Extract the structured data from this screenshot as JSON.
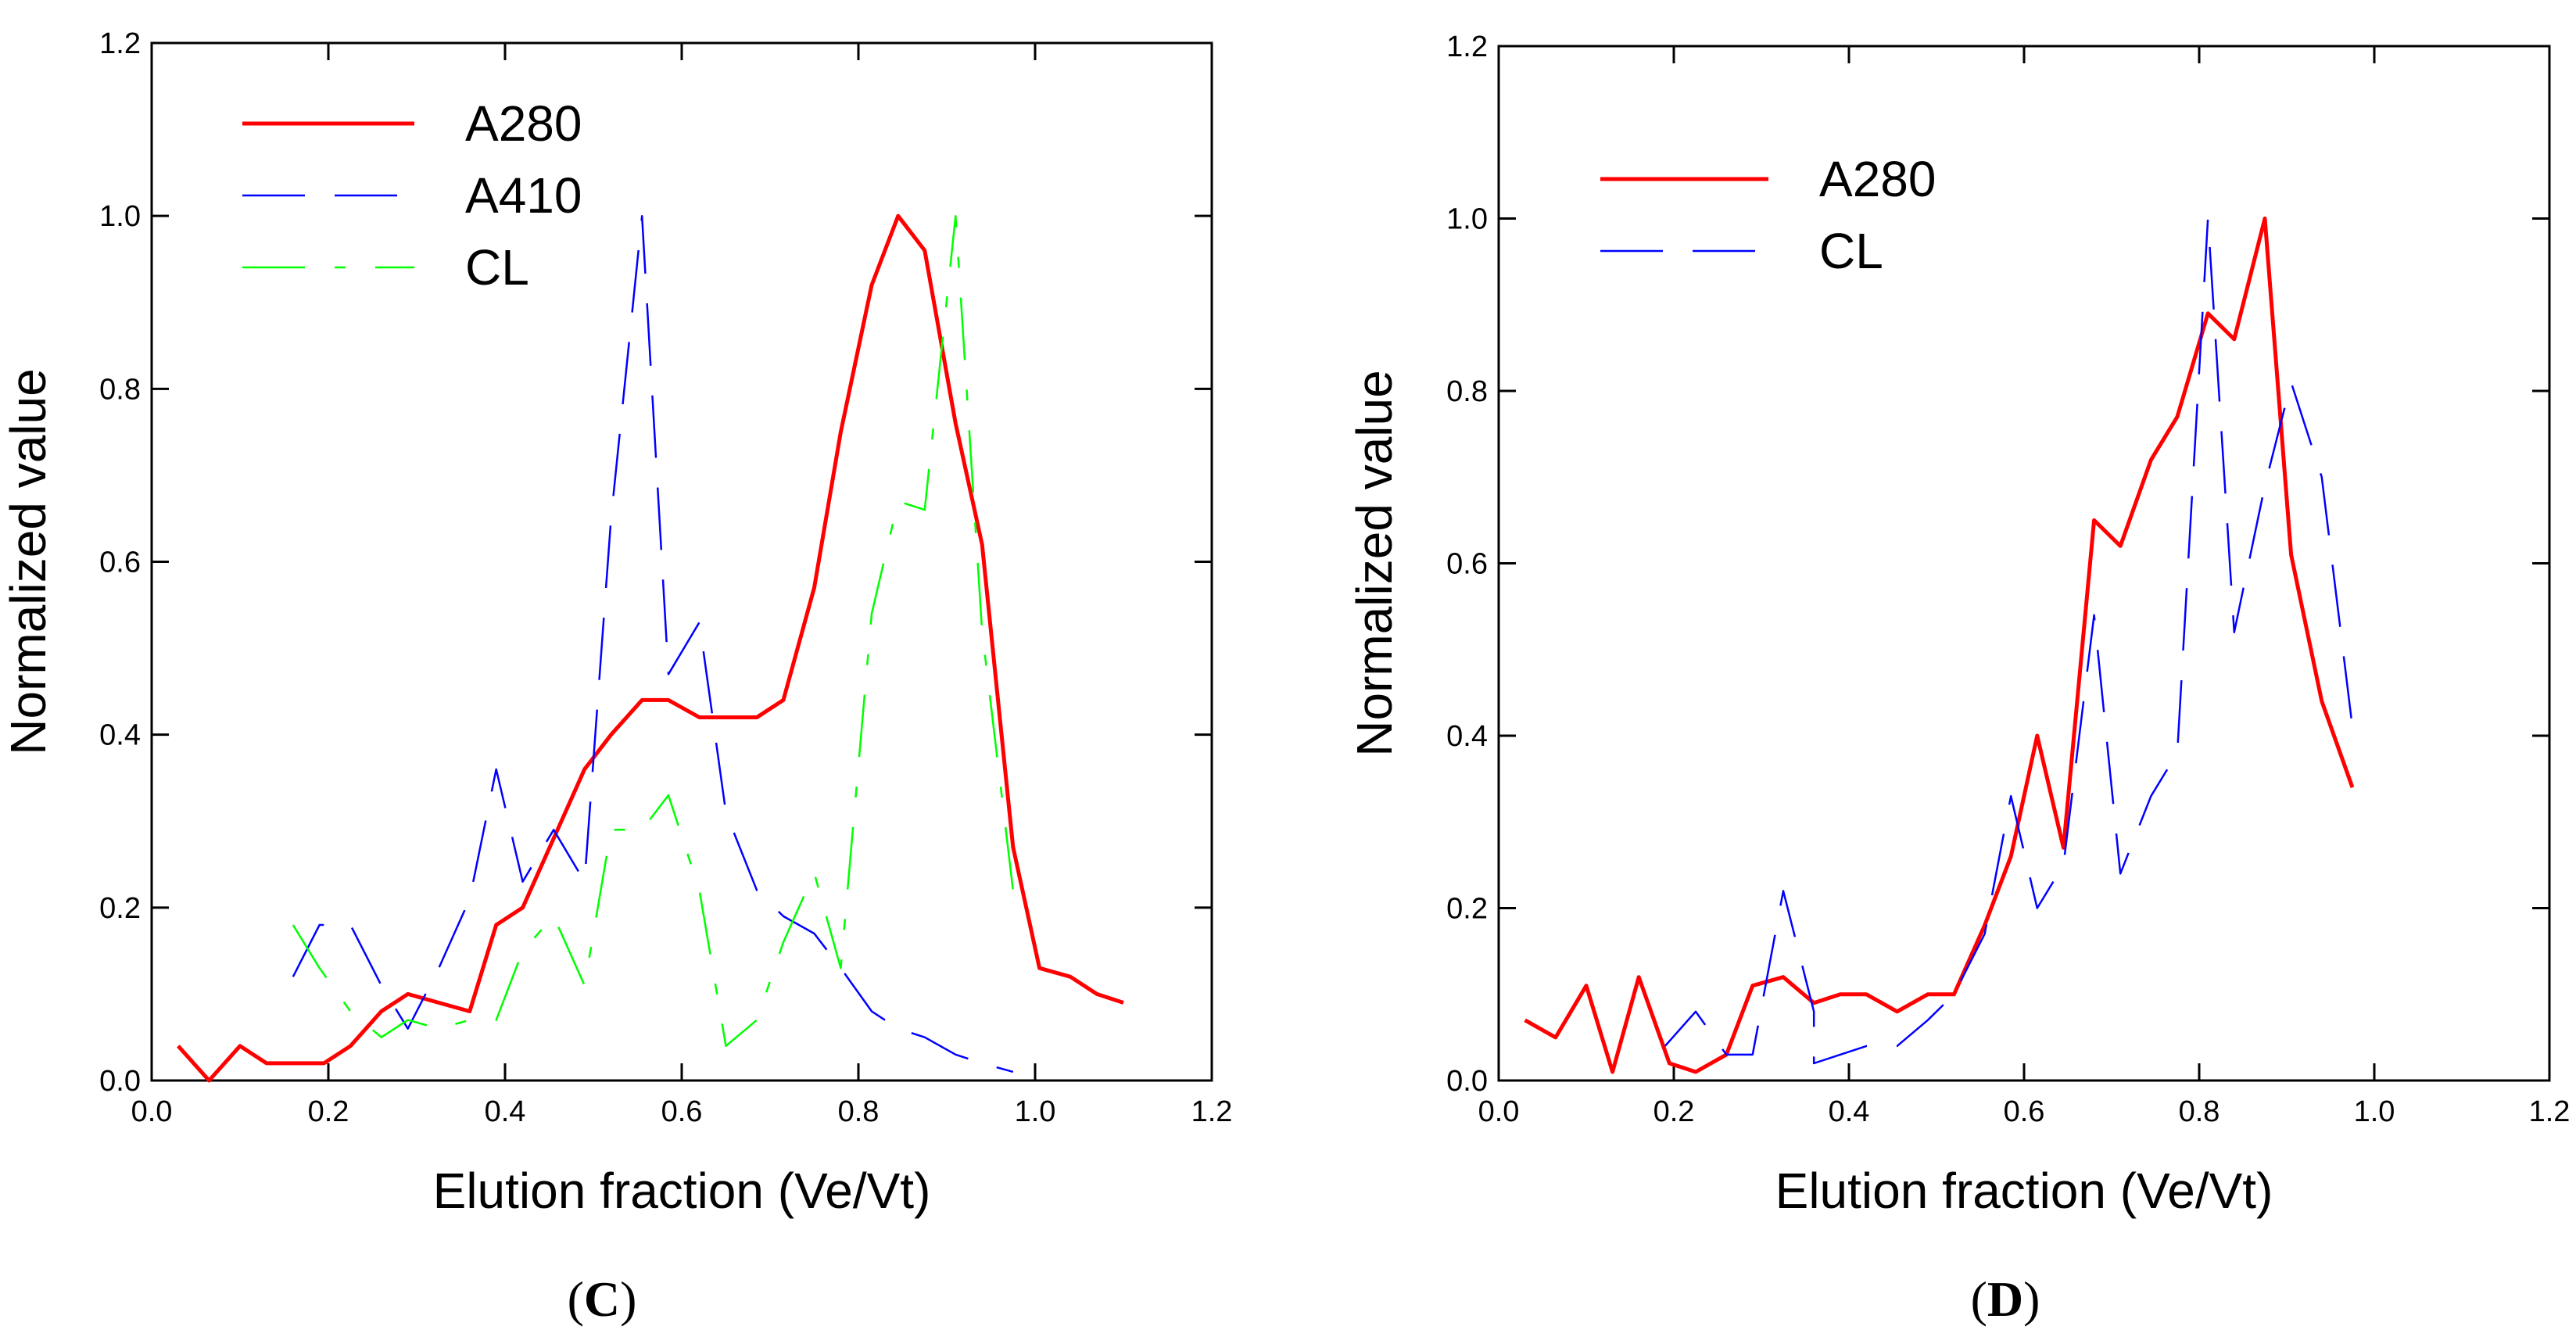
{
  "chart_data": [
    {
      "panel": "C",
      "type": "line",
      "xlabel": "Elution fraction (Ve/Vt)",
      "ylabel": "Normalized value",
      "xlim": [
        0.0,
        1.2
      ],
      "ylim": [
        0.0,
        1.2
      ],
      "xticks": [
        "0.0",
        "0.2",
        "0.4",
        "0.6",
        "0.8",
        "1.0",
        "1.2"
      ],
      "yticks": [
        "0.0",
        "0.2",
        "0.4",
        "0.6",
        "0.8",
        "1.0",
        "1.2"
      ],
      "grid": false,
      "legend_position": "top-left",
      "caption_open": "(",
      "caption_letter": "C",
      "caption_close": ")",
      "series": [
        {
          "name": "A280",
          "color": "#ff0000",
          "style": "solid",
          "points": [
            [
              0.03,
              0.04
            ],
            [
              0.065,
              0.0
            ],
            [
              0.1,
              0.04
            ],
            [
              0.13,
              0.02
            ],
            [
              0.16,
              0.02
            ],
            [
              0.195,
              0.02
            ],
            [
              0.225,
              0.04
            ],
            [
              0.26,
              0.08
            ],
            [
              0.29,
              0.1
            ],
            [
              0.325,
              0.09
            ],
            [
              0.36,
              0.08
            ],
            [
              0.39,
              0.18
            ],
            [
              0.42,
              0.2
            ],
            [
              0.455,
              0.28
            ],
            [
              0.49,
              0.36
            ],
            [
              0.52,
              0.4
            ],
            [
              0.555,
              0.44
            ],
            [
              0.585,
              0.44
            ],
            [
              0.62,
              0.42
            ],
            [
              0.65,
              0.42
            ],
            [
              0.685,
              0.42
            ],
            [
              0.715,
              0.44
            ],
            [
              0.75,
              0.57
            ],
            [
              0.78,
              0.75
            ],
            [
              0.815,
              0.92
            ],
            [
              0.845,
              1.0
            ],
            [
              0.875,
              0.96
            ],
            [
              0.91,
              0.76
            ],
            [
              0.94,
              0.62
            ],
            [
              0.975,
              0.27
            ],
            [
              1.005,
              0.13
            ],
            [
              1.04,
              0.12
            ],
            [
              1.07,
              0.1
            ],
            [
              1.1,
              0.09
            ]
          ]
        },
        {
          "name": "A410",
          "color": "#0000ff",
          "style": "dashed",
          "points": [
            [
              0.16,
              0.12
            ],
            [
              0.19,
              0.18
            ],
            [
              0.225,
              0.18
            ],
            [
              0.26,
              0.11
            ],
            [
              0.29,
              0.06
            ],
            [
              0.325,
              0.13
            ],
            [
              0.36,
              0.21
            ],
            [
              0.39,
              0.36
            ],
            [
              0.42,
              0.23
            ],
            [
              0.455,
              0.29
            ],
            [
              0.49,
              0.23
            ],
            [
              0.52,
              0.65
            ],
            [
              0.555,
              1.0
            ],
            [
              0.585,
              0.47
            ],
            [
              0.62,
              0.53
            ],
            [
              0.65,
              0.31
            ],
            [
              0.685,
              0.22
            ],
            [
              0.715,
              0.19
            ],
            [
              0.75,
              0.17
            ],
            [
              0.78,
              0.13
            ],
            [
              0.815,
              0.08
            ],
            [
              0.845,
              0.06
            ],
            [
              0.875,
              0.05
            ],
            [
              0.91,
              0.03
            ],
            [
              0.94,
              0.02
            ],
            [
              0.975,
              0.01
            ]
          ]
        },
        {
          "name": "CL",
          "color": "#00ff00",
          "style": "dashdot",
          "points": [
            [
              0.16,
              0.18
            ],
            [
              0.19,
              0.13
            ],
            [
              0.225,
              0.08
            ],
            [
              0.26,
              0.05
            ],
            [
              0.29,
              0.07
            ],
            [
              0.325,
              0.06
            ],
            [
              0.36,
              0.07
            ],
            [
              0.39,
              0.07
            ],
            [
              0.42,
              0.15
            ],
            [
              0.455,
              0.19
            ],
            [
              0.49,
              0.11
            ],
            [
              0.52,
              0.29
            ],
            [
              0.555,
              0.29
            ],
            [
              0.585,
              0.33
            ],
            [
              0.62,
              0.22
            ],
            [
              0.65,
              0.04
            ],
            [
              0.685,
              0.07
            ],
            [
              0.715,
              0.16
            ],
            [
              0.75,
              0.24
            ],
            [
              0.78,
              0.13
            ],
            [
              0.815,
              0.54
            ],
            [
              0.845,
              0.67
            ],
            [
              0.875,
              0.66
            ],
            [
              0.91,
              1.0
            ],
            [
              0.94,
              0.52
            ],
            [
              0.975,
              0.22
            ]
          ]
        }
      ]
    },
    {
      "panel": "D",
      "type": "line",
      "xlabel": "Elution fraction (Ve/Vt)",
      "ylabel": "Normalized value",
      "xlim": [
        0.0,
        1.2
      ],
      "ylim": [
        0.0,
        1.2
      ],
      "xticks": [
        "0.0",
        "0.2",
        "0.4",
        "0.6",
        "0.8",
        "1.0",
        "1.2"
      ],
      "yticks": [
        "0.0",
        "0.2",
        "0.4",
        "0.6",
        "0.8",
        "1.0",
        "1.2"
      ],
      "grid": false,
      "legend_position": "top-left",
      "caption_open": "(",
      "caption_letter": "D",
      "caption_close": ")",
      "series": [
        {
          "name": "A280",
          "color": "#ff0000",
          "style": "solid",
          "points": [
            [
              0.03,
              0.07
            ],
            [
              0.065,
              0.05
            ],
            [
              0.1,
              0.11
            ],
            [
              0.13,
              0.01
            ],
            [
              0.16,
              0.12
            ],
            [
              0.195,
              0.02
            ],
            [
              0.225,
              0.01
            ],
            [
              0.26,
              0.03
            ],
            [
              0.29,
              0.11
            ],
            [
              0.325,
              0.12
            ],
            [
              0.36,
              0.09
            ],
            [
              0.39,
              0.1
            ],
            [
              0.42,
              0.1
            ],
            [
              0.455,
              0.08
            ],
            [
              0.49,
              0.1
            ],
            [
              0.52,
              0.1
            ],
            [
              0.555,
              0.18
            ],
            [
              0.585,
              0.26
            ],
            [
              0.615,
              0.4
            ],
            [
              0.645,
              0.27
            ],
            [
              0.68,
              0.65
            ],
            [
              0.71,
              0.62
            ],
            [
              0.745,
              0.72
            ],
            [
              0.775,
              0.77
            ],
            [
              0.81,
              0.89
            ],
            [
              0.84,
              0.86
            ],
            [
              0.875,
              1.0
            ],
            [
              0.905,
              0.61
            ],
            [
              0.94,
              0.44
            ],
            [
              0.975,
              0.34
            ]
          ]
        },
        {
          "name": "CL",
          "color": "#0000ff",
          "style": "dashed",
          "points": [
            [
              0.19,
              0.04
            ],
            [
              0.225,
              0.08
            ],
            [
              0.26,
              0.03
            ],
            [
              0.29,
              0.03
            ],
            [
              0.325,
              0.22
            ],
            [
              0.36,
              0.08
            ],
            [
              0.36,
              0.02
            ],
            [
              0.39,
              0.03
            ],
            [
              0.42,
              0.04
            ],
            [
              0.455,
              0.04
            ],
            [
              0.49,
              0.07
            ],
            [
              0.52,
              0.1
            ],
            [
              0.555,
              0.17
            ],
            [
              0.585,
              0.33
            ],
            [
              0.615,
              0.2
            ],
            [
              0.645,
              0.25
            ],
            [
              0.68,
              0.54
            ],
            [
              0.71,
              0.24
            ],
            [
              0.745,
              0.33
            ],
            [
              0.775,
              0.38
            ],
            [
              0.81,
              1.0
            ],
            [
              0.84,
              0.52
            ],
            [
              0.875,
              0.69
            ],
            [
              0.905,
              0.81
            ],
            [
              0.94,
              0.7
            ],
            [
              0.975,
              0.41
            ]
          ]
        }
      ]
    }
  ]
}
